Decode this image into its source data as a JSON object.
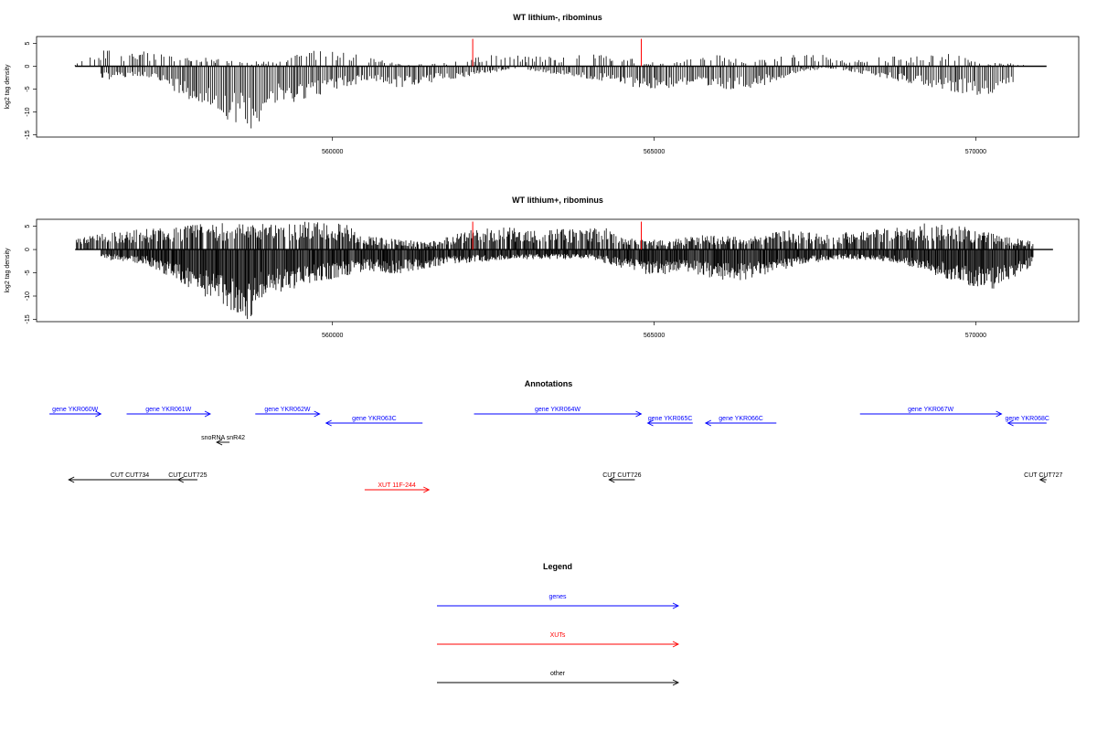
{
  "chart_data": [
    {
      "type": "bar",
      "title": "WT lithium-, ribominus",
      "ylabel": "log2 tag density",
      "xlabel": "",
      "xlim": [
        555400,
        571600
      ],
      "ylim": [
        -15.5,
        6.5
      ],
      "yticks": [
        5,
        0,
        -5,
        -10,
        -15
      ],
      "xticks": [
        560000,
        565000,
        570000
      ],
      "grid": false,
      "density": "low",
      "markers": [
        562180,
        564800
      ],
      "marker_color": "#ff0000",
      "marker_height": 6,
      "series": [
        {
          "values_pos": [
            [
              556000,
              0.5
            ],
            [
              556500,
              3.5
            ],
            [
              557000,
              3
            ],
            [
              557500,
              2.5
            ],
            [
              557900,
              1.5
            ],
            [
              558200,
              2
            ],
            [
              558500,
              0.8
            ],
            [
              559200,
              1.2
            ],
            [
              559600,
              3
            ],
            [
              560200,
              3.5
            ],
            [
              560400,
              2.5
            ],
            [
              561000,
              0.5
            ],
            [
              561500,
              0.4
            ],
            [
              562500,
              2.5
            ],
            [
              563000,
              2
            ],
            [
              563500,
              2
            ],
            [
              564200,
              2.5
            ],
            [
              565200,
              0.4
            ],
            [
              565700,
              3
            ],
            [
              566500,
              1
            ],
            [
              567500,
              3
            ],
            [
              568000,
              1
            ],
            [
              568600,
              2
            ],
            [
              569200,
              2
            ],
            [
              569600,
              3
            ],
            [
              570100,
              0.8
            ],
            [
              570800,
              0.5
            ]
          ],
          "values_neg": [
            [
              556400,
              -3
            ],
            [
              557100,
              -2
            ],
            [
              558700,
              -13.5
            ],
            [
              558900,
              -11
            ],
            [
              559000,
              -9
            ],
            [
              560600,
              -3
            ],
            [
              561000,
              -4.5
            ],
            [
              561400,
              -4
            ],
            [
              561700,
              -3
            ],
            [
              562900,
              -0.5
            ],
            [
              565000,
              -5
            ],
            [
              565600,
              -4
            ],
            [
              565900,
              -5.5
            ],
            [
              566300,
              -5
            ],
            [
              566700,
              -4
            ],
            [
              567300,
              -1
            ],
            [
              567800,
              -0.5
            ],
            [
              569900,
              -6
            ],
            [
              570300,
              -6.5
            ],
            [
              570600,
              -4
            ]
          ]
        }
      ]
    },
    {
      "type": "bar",
      "title": "WT lithium+, ribominus",
      "ylabel": "log2 tag density",
      "xlabel": "",
      "xlim": [
        555400,
        571600
      ],
      "ylim": [
        -15.5,
        6.5
      ],
      "yticks": [
        5,
        0,
        -5,
        -10,
        -15
      ],
      "xticks": [
        560000,
        565000,
        570000
      ],
      "grid": false,
      "density": "high",
      "markers": [
        562180,
        564800
      ],
      "marker_color": "#ff0000",
      "marker_height": 6,
      "series": [
        {
          "values_pos": [
            [
              556000,
              2
            ],
            [
              556500,
              3.5
            ],
            [
              557000,
              4
            ],
            [
              557500,
              4.5
            ],
            [
              558000,
              5
            ],
            [
              558400,
              5.5
            ],
            [
              559200,
              5
            ],
            [
              559600,
              5.5
            ],
            [
              560200,
              5.5
            ],
            [
              560400,
              3
            ],
            [
              561000,
              2
            ],
            [
              561500,
              1.5
            ],
            [
              562200,
              4
            ],
            [
              562700,
              4.5
            ],
            [
              563200,
              4
            ],
            [
              563700,
              4
            ],
            [
              564200,
              4.5
            ],
            [
              564800,
              2
            ],
            [
              565300,
              2
            ],
            [
              565800,
              3
            ],
            [
              566500,
              2.5
            ],
            [
              567100,
              4
            ],
            [
              567700,
              3
            ],
            [
              568300,
              4
            ],
            [
              568900,
              4.5
            ],
            [
              569400,
              5.5
            ],
            [
              570000,
              4
            ],
            [
              570500,
              2.5
            ],
            [
              570900,
              1.5
            ]
          ],
          "values_neg": [
            [
              556400,
              -2
            ],
            [
              557100,
              -3
            ],
            [
              558700,
              -14.5
            ],
            [
              558900,
              -10.5
            ],
            [
              559100,
              -9
            ],
            [
              560500,
              -4.5
            ],
            [
              561000,
              -5
            ],
            [
              561400,
              -4
            ],
            [
              561800,
              -3
            ],
            [
              562900,
              -2
            ],
            [
              564000,
              -2
            ],
            [
              565000,
              -5.5
            ],
            [
              565500,
              -4.5
            ],
            [
              565900,
              -6
            ],
            [
              566300,
              -6.5
            ],
            [
              566800,
              -5
            ],
            [
              567300,
              -3
            ],
            [
              567900,
              -2
            ],
            [
              568700,
              -2.5
            ],
            [
              569800,
              -7
            ],
            [
              570200,
              -8.5
            ],
            [
              570600,
              -6
            ],
            [
              570900,
              -3
            ]
          ]
        }
      ]
    },
    {
      "type": "annotation",
      "title": "Annotations",
      "xlim": [
        555400,
        571600
      ],
      "features": [
        {
          "label": "gene YKR060W",
          "start": 555600,
          "end": 556400,
          "strand": "+",
          "row": 0,
          "color": "#0000ff"
        },
        {
          "label": "gene YKR061W",
          "start": 556800,
          "end": 558100,
          "strand": "+",
          "row": 0,
          "color": "#0000ff"
        },
        {
          "label": "gene YKR062W",
          "start": 558800,
          "end": 559800,
          "strand": "+",
          "row": 0,
          "color": "#0000ff"
        },
        {
          "label": "gene YKR063C",
          "start": 559900,
          "end": 561400,
          "strand": "-",
          "row": 1,
          "color": "#0000ff"
        },
        {
          "label": "gene YKR064W",
          "start": 562200,
          "end": 564800,
          "strand": "+",
          "row": 0,
          "color": "#0000ff"
        },
        {
          "label": "gene YKR065C",
          "start": 564900,
          "end": 565600,
          "strand": "-",
          "row": 1,
          "color": "#0000ff"
        },
        {
          "label": "gene YKR066C",
          "start": 565800,
          "end": 566900,
          "strand": "-",
          "row": 1,
          "color": "#0000ff"
        },
        {
          "label": "gene YKR067W",
          "start": 568200,
          "end": 570400,
          "strand": "+",
          "row": 0,
          "color": "#0000ff"
        },
        {
          "label": "gene YKR068C",
          "start": 570500,
          "end": 571100,
          "strand": "-",
          "row": 1,
          "color": "#0000ff"
        },
        {
          "label": "snoRNA snR42",
          "start": 558200,
          "end": 558400,
          "strand": "-",
          "row": 2,
          "color": "#000000"
        },
        {
          "label": "CUT CUT734",
          "start": 555900,
          "end": 557800,
          "strand": "-",
          "row": 3,
          "color": "#000000"
        },
        {
          "label": "CUT CUT725",
          "start": 557600,
          "end": 557900,
          "strand": "-",
          "row": 3,
          "color": "#000000"
        },
        {
          "label": "XUT 11F-244",
          "start": 560500,
          "end": 561500,
          "strand": "+",
          "row": 4,
          "color": "#ff0000"
        },
        {
          "label": "CUT CUT726",
          "start": 564300,
          "end": 564700,
          "strand": "-",
          "row": 3,
          "color": "#000000"
        },
        {
          "label": "CUT CUT727",
          "start": 571000,
          "end": 571100,
          "strand": "-",
          "row": 3,
          "color": "#000000"
        }
      ]
    },
    {
      "type": "legend",
      "title": "Legend",
      "entries": [
        {
          "label": "genes",
          "color": "#0000ff"
        },
        {
          "label": "XUTs",
          "color": "#ff0000"
        },
        {
          "label": "other",
          "color": "#000000"
        }
      ]
    }
  ]
}
